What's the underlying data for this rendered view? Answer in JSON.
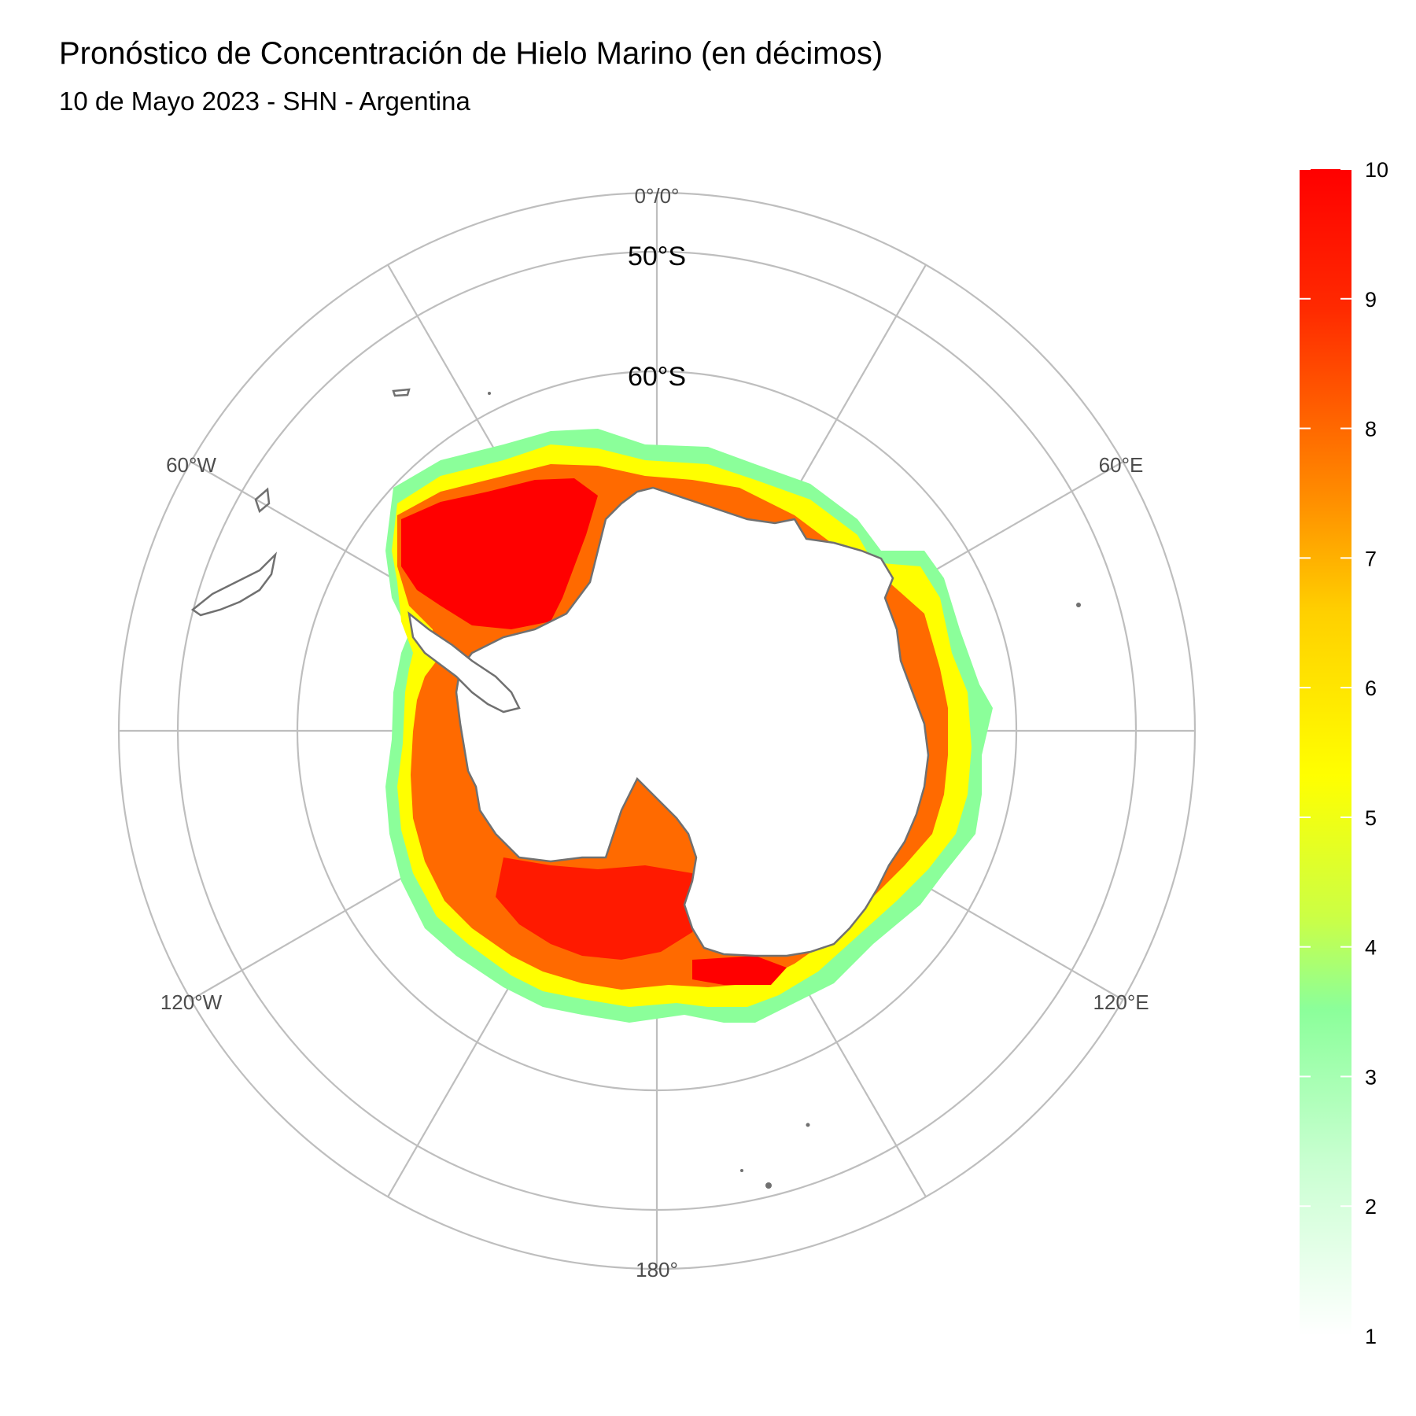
{
  "title": "Pronóstico de Concentración de Hielo Marino (en décimos)",
  "subtitle": "10 de Mayo 2023 - SHN - Argentina",
  "map": {
    "projection": "south-polar-stereographic",
    "graticule_color": "#bebebe",
    "coastline_color": "#707070",
    "longitude_labels": [
      "0°/0°",
      "60°E",
      "120°E",
      "180°",
      "120°W",
      "60°W"
    ],
    "latitude_labels": [
      "50°S",
      "60°S"
    ]
  },
  "legend": {
    "min": 1,
    "max": 10,
    "ticks": [
      "1",
      "2",
      "3",
      "4",
      "5",
      "6",
      "7",
      "8",
      "9",
      "10"
    ],
    "colors": [
      "#ffffff",
      "#8bff9a",
      "#ffff00",
      "#ff8c00",
      "#ff0000"
    ]
  }
}
